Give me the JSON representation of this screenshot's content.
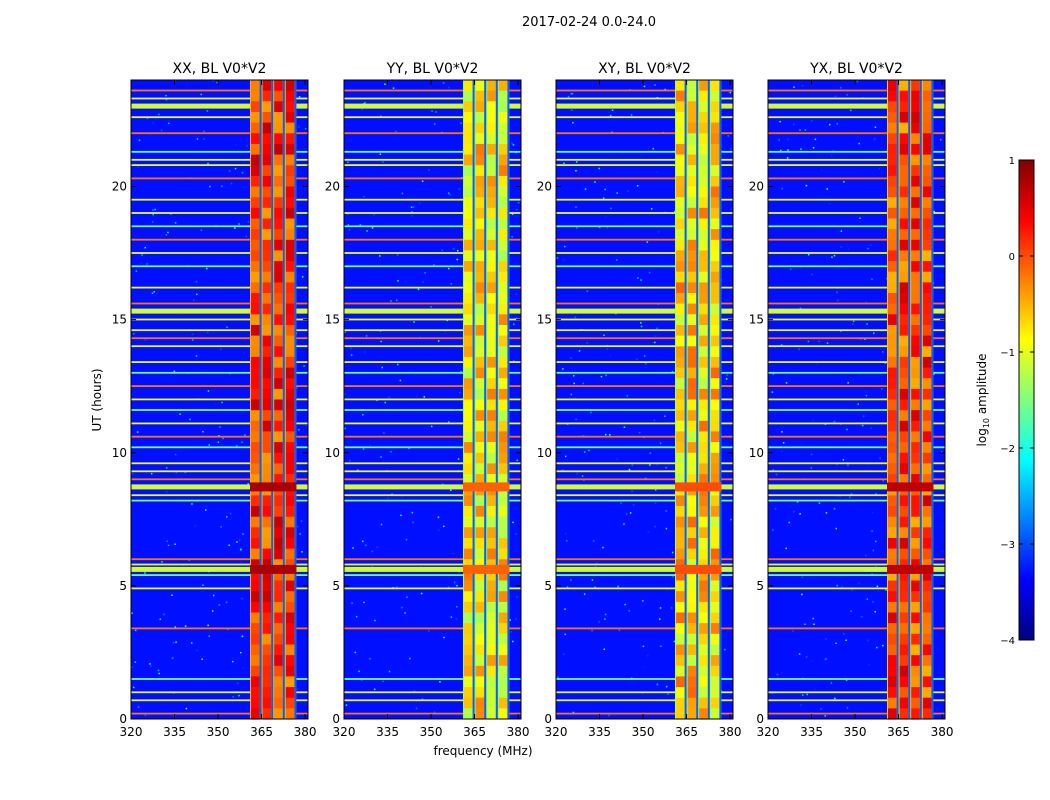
{
  "chart_data": {
    "type": "heatmap",
    "title": "2017-02-24 0.0-24.0",
    "xlabel": "frequency (MHz)",
    "ylabel": "UT (hours)",
    "xlim": [
      320,
      381
    ],
    "ylim": [
      0,
      24
    ],
    "xticks": [
      "320",
      "335",
      "350",
      "365",
      "380"
    ],
    "yticks": [
      "0",
      "5",
      "10",
      "15",
      "20"
    ],
    "panels": [
      {
        "name": "XX",
        "title": "XX, BL V0*V2",
        "band_mhz": [
          361,
          377
        ],
        "band_level": 0.1
      },
      {
        "name": "YY",
        "title": "YY, BL V0*V2",
        "band_mhz": [
          361,
          377
        ],
        "band_level": -0.8
      },
      {
        "name": "XY",
        "title": "XY, BL V0*V2",
        "band_mhz": [
          361,
          377
        ],
        "band_level": -0.7
      },
      {
        "name": "YX",
        "title": "YX, BL V0*V2",
        "band_mhz": [
          361,
          377
        ],
        "band_level": 0.0
      }
    ],
    "rfi_hours": [
      0.2,
      0.7,
      1.0,
      1.5,
      3.4,
      4.9,
      5.4,
      5.8,
      6.0,
      8.2,
      8.4,
      8.7,
      9.0,
      9.3,
      9.6,
      10.2,
      10.6,
      11.1,
      11.6,
      12.0,
      12.5,
      13.0,
      13.4,
      14.0,
      14.3,
      14.6,
      15.0,
      15.3,
      15.6,
      16.2,
      17.0,
      17.5,
      18.0,
      18.5,
      19.0,
      19.5,
      20.3,
      20.8,
      21.0,
      21.3,
      22.0,
      22.6,
      23.0,
      23.3,
      23.6
    ],
    "strong_hours": [
      5.6,
      8.7,
      15.3,
      23.0
    ],
    "colorbar": {
      "label": "log10 amplitude",
      "label_prefix": "log",
      "label_subscript": "10",
      "label_suffix": " amplitude",
      "range": [
        -4,
        1
      ],
      "ticks": [
        "1",
        "0",
        "−1",
        "−2",
        "−3",
        "−4"
      ],
      "colormap": "jet",
      "stops": [
        "#00007f",
        "#0000ff",
        "#007fff",
        "#00ffff",
        "#7fff7f",
        "#ffff00",
        "#ff7f00",
        "#ff0000",
        "#7f0000"
      ]
    }
  }
}
